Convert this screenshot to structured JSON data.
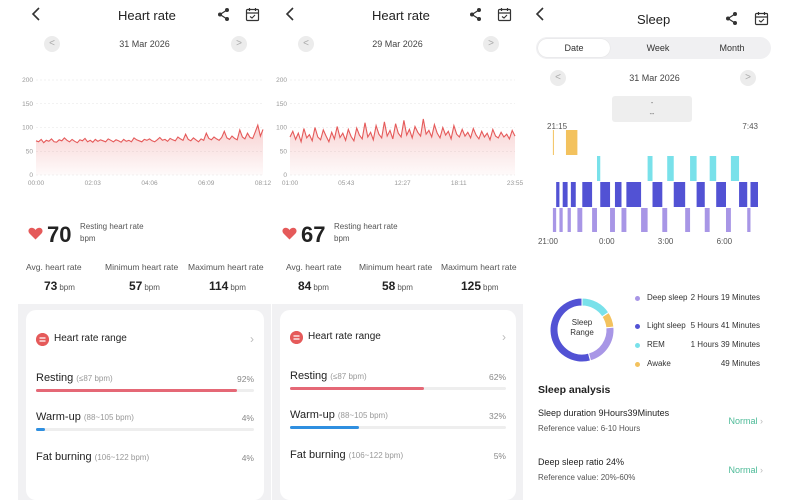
{
  "colors": {
    "heart_line": "#e55a5a",
    "resting": "#e56876",
    "warmup": "#2f8fe0",
    "deep": "#a896e6",
    "light": "#5252d4",
    "rem": "#79e1ea",
    "awake": "#f3c25e",
    "normal": "#4cba97"
  },
  "icons": {
    "back": "chevron-left-icon",
    "share": "share-icon",
    "calendar": "calendar-icon",
    "heart": "heart-icon",
    "range": "heart-rate-range-icon"
  },
  "panel1": {
    "title": "Heart rate",
    "date": "31 Mar 2026",
    "chart_data": {
      "type": "line",
      "title": "",
      "xlabel": "",
      "ylabel": "",
      "x_ticks": [
        "00:00",
        "02:03",
        "04:06",
        "06:09",
        "08:12"
      ],
      "y_ticks": [
        200,
        150,
        100,
        50,
        0
      ],
      "ylim": [
        0,
        200
      ],
      "grid": true,
      "series": [
        {
          "values": [
            72,
            70,
            75,
            68,
            73,
            71,
            76,
            70,
            69,
            74,
            72,
            78,
            73,
            70,
            75,
            71,
            68,
            74,
            72,
            77,
            70,
            73,
            69,
            75,
            71,
            74,
            72,
            70,
            76,
            73,
            70,
            74,
            72,
            69,
            75,
            71,
            73,
            70,
            78,
            74,
            72,
            70,
            75,
            73,
            76,
            72,
            70,
            74,
            79,
            73,
            75,
            71,
            77,
            74,
            72,
            80,
            76,
            73,
            86,
            75,
            72,
            78,
            74,
            70,
            76,
            73,
            88,
            77,
            74,
            80,
            76,
            73,
            79,
            92,
            78,
            75,
            82,
            77,
            74,
            95,
            80,
            76,
            88,
            79,
            77,
            91,
            105,
            82,
            96
          ]
        }
      ]
    },
    "resting": {
      "value": "70",
      "label": "Resting heart rate",
      "unit": "bpm"
    },
    "stats": [
      {
        "label": "Avg. heart rate",
        "value": "73",
        "unit": "bpm"
      },
      {
        "label": "Minimum heart rate",
        "value": "57",
        "unit": "bpm"
      },
      {
        "label": "Maximum heart rate",
        "value": "114",
        "unit": "bpm"
      }
    ],
    "range_title": "Heart rate range",
    "zones": [
      {
        "name": "Resting",
        "range": "(≤87 bpm)",
        "pct": "92%",
        "fraction": 0.92
      },
      {
        "name": "Warm-up",
        "range": "(88~105 bpm)",
        "pct": "4%",
        "fraction": 0.04
      },
      {
        "name": "Fat burning",
        "range": "(106~122 bpm)",
        "pct": "4%",
        "fraction": 0.04
      }
    ]
  },
  "panel2": {
    "title": "Heart rate",
    "date": "29 Mar 2026",
    "chart_data": {
      "type": "line",
      "title": "",
      "xlabel": "",
      "ylabel": "",
      "x_ticks": [
        "01:00",
        "05:43",
        "12:27",
        "18:11",
        "23:55"
      ],
      "y_ticks": [
        200,
        150,
        100,
        50,
        0
      ],
      "ylim": [
        0,
        200
      ],
      "grid": true,
      "series": [
        {
          "values": [
            80,
            92,
            75,
            88,
            70,
            98,
            78,
            85,
            72,
            100,
            80,
            74,
            95,
            82,
            70,
            90,
            76,
            102,
            79,
            88,
            73,
            96,
            81,
            72,
            99,
            84,
            76,
            110,
            80,
            90,
            74,
            104,
            86,
            78,
            112,
            82,
            94,
            76,
            108,
            88,
            80,
            115,
            84,
            96,
            78,
            102,
            90,
            82,
            118,
            86,
            94,
            80,
            106,
            88,
            78,
            100,
            84,
            92,
            76,
            104,
            86,
            80,
            96,
            82,
            90,
            78,
            98,
            84,
            76,
            92,
            80,
            88,
            74,
            96,
            82,
            78,
            90,
            80,
            86,
            76,
            94,
            82
          ]
        }
      ]
    },
    "resting": {
      "value": "67",
      "label": "Resting heart rate",
      "unit": "bpm"
    },
    "stats": [
      {
        "label": "Avg. heart rate",
        "value": "84",
        "unit": "bpm"
      },
      {
        "label": "Minimum heart rate",
        "value": "58",
        "unit": "bpm"
      },
      {
        "label": "Maximum heart rate",
        "value": "125",
        "unit": "bpm"
      }
    ],
    "range_title": "Heart rate range",
    "zones": [
      {
        "name": "Resting",
        "range": "(≤87 bpm)",
        "pct": "62%",
        "fraction": 0.62
      },
      {
        "name": "Warm-up",
        "range": "(88~105 bpm)",
        "pct": "32%",
        "fraction": 0.32
      },
      {
        "name": "Fat burning",
        "range": "(106~122 bpm)",
        "pct": "5%",
        "fraction": 0.05
      }
    ]
  },
  "panel3": {
    "title": "Sleep",
    "tabs": [
      "Date",
      "Week",
      "Month"
    ],
    "active_tab": "Date",
    "date": "31 Mar 2026",
    "tooltip": [
      "-",
      "--"
    ],
    "chart_data": {
      "type": "bar",
      "title": "",
      "xlabel": "",
      "ylabel": "",
      "start_label": "21:15",
      "end_label": "7:43",
      "x_ticks": [
        "21:00",
        "0:00",
        "3:00",
        "6:00"
      ],
      "stages": [
        "Awake",
        "REM",
        "Light sleep",
        "Deep sleep"
      ],
      "segments": [
        {
          "stage": "Awake",
          "start": "21:15",
          "end": "21:18"
        },
        {
          "stage": "Awake",
          "start": "21:55",
          "end": "22:30"
        },
        {
          "stage": "Deep sleep",
          "start": "21:15",
          "end": "21:25"
        },
        {
          "stage": "Light sleep",
          "start": "21:25",
          "end": "21:35"
        },
        {
          "stage": "Deep sleep",
          "start": "21:35",
          "end": "21:45"
        },
        {
          "stage": "Light sleep",
          "start": "21:45",
          "end": "22:00"
        },
        {
          "stage": "Deep sleep",
          "start": "22:00",
          "end": "22:10"
        },
        {
          "stage": "Light sleep",
          "start": "22:10",
          "end": "22:25"
        },
        {
          "stage": "Deep sleep",
          "start": "22:30",
          "end": "22:45"
        },
        {
          "stage": "Light sleep",
          "start": "22:45",
          "end": "23:15"
        },
        {
          "stage": "Deep sleep",
          "start": "23:15",
          "end": "23:30"
        },
        {
          "stage": "REM",
          "start": "23:30",
          "end": "23:40"
        },
        {
          "stage": "Light sleep",
          "start": "23:40",
          "end": "0:10"
        },
        {
          "stage": "Deep sleep",
          "start": "0:10",
          "end": "0:25"
        },
        {
          "stage": "Light sleep",
          "start": "0:25",
          "end": "0:45"
        },
        {
          "stage": "Deep sleep",
          "start": "0:45",
          "end": "1:00"
        },
        {
          "stage": "Light sleep",
          "start": "1:00",
          "end": "1:45"
        },
        {
          "stage": "Deep sleep",
          "start": "1:45",
          "end": "2:05"
        },
        {
          "stage": "REM",
          "start": "2:05",
          "end": "2:20"
        },
        {
          "stage": "Light sleep",
          "start": "2:20",
          "end": "2:50"
        },
        {
          "stage": "Deep sleep",
          "start": "2:50",
          "end": "3:05"
        },
        {
          "stage": "REM",
          "start": "3:05",
          "end": "3:25"
        },
        {
          "stage": "Light sleep",
          "start": "3:25",
          "end": "4:00"
        },
        {
          "stage": "Deep sleep",
          "start": "4:00",
          "end": "4:15"
        },
        {
          "stage": "REM",
          "start": "4:15",
          "end": "4:35"
        },
        {
          "stage": "Light sleep",
          "start": "4:35",
          "end": "5:00"
        },
        {
          "stage": "Deep sleep",
          "start": "5:00",
          "end": "5:15"
        },
        {
          "stage": "REM",
          "start": "5:15",
          "end": "5:35"
        },
        {
          "stage": "Light sleep",
          "start": "5:35",
          "end": "6:05"
        },
        {
          "stage": "Deep sleep",
          "start": "6:05",
          "end": "6:20"
        },
        {
          "stage": "REM",
          "start": "6:20",
          "end": "6:45"
        },
        {
          "stage": "Light sleep",
          "start": "6:45",
          "end": "7:10"
        },
        {
          "stage": "Deep sleep",
          "start": "7:10",
          "end": "7:20"
        },
        {
          "stage": "Light sleep",
          "start": "7:20",
          "end": "7:43"
        }
      ]
    },
    "donut_label": [
      "Sleep",
      "Range"
    ],
    "donut_data": {
      "type": "pie",
      "slices": [
        {
          "name": "Deep sleep",
          "minutes": 139
        },
        {
          "name": "Light sleep",
          "minutes": 341
        },
        {
          "name": "REM",
          "minutes": 99
        },
        {
          "name": "Awake",
          "minutes": 49
        }
      ]
    },
    "legend": [
      {
        "name": "Deep sleep",
        "value": "2 Hours 19 Minutes",
        "color": "#a896e6"
      },
      {
        "name": "Light sleep",
        "value": "5 Hours 41 Minutes",
        "color": "#5252d4"
      },
      {
        "name": "REM",
        "value": "1 Hours 39 Minutes",
        "color": "#79e1ea"
      },
      {
        "name": "Awake",
        "value": "49 Minutes",
        "color": "#f3c25e"
      }
    ],
    "analysis_title": "Sleep analysis",
    "analysis": [
      {
        "name": "Sleep duration  9Hours39Minutes",
        "ref": "Reference value:  6-10 Hours",
        "status": "Normal"
      },
      {
        "name": "Deep sleep ratio  24%",
        "ref": "Reference value:  20%-60%",
        "status": "Normal"
      }
    ]
  }
}
